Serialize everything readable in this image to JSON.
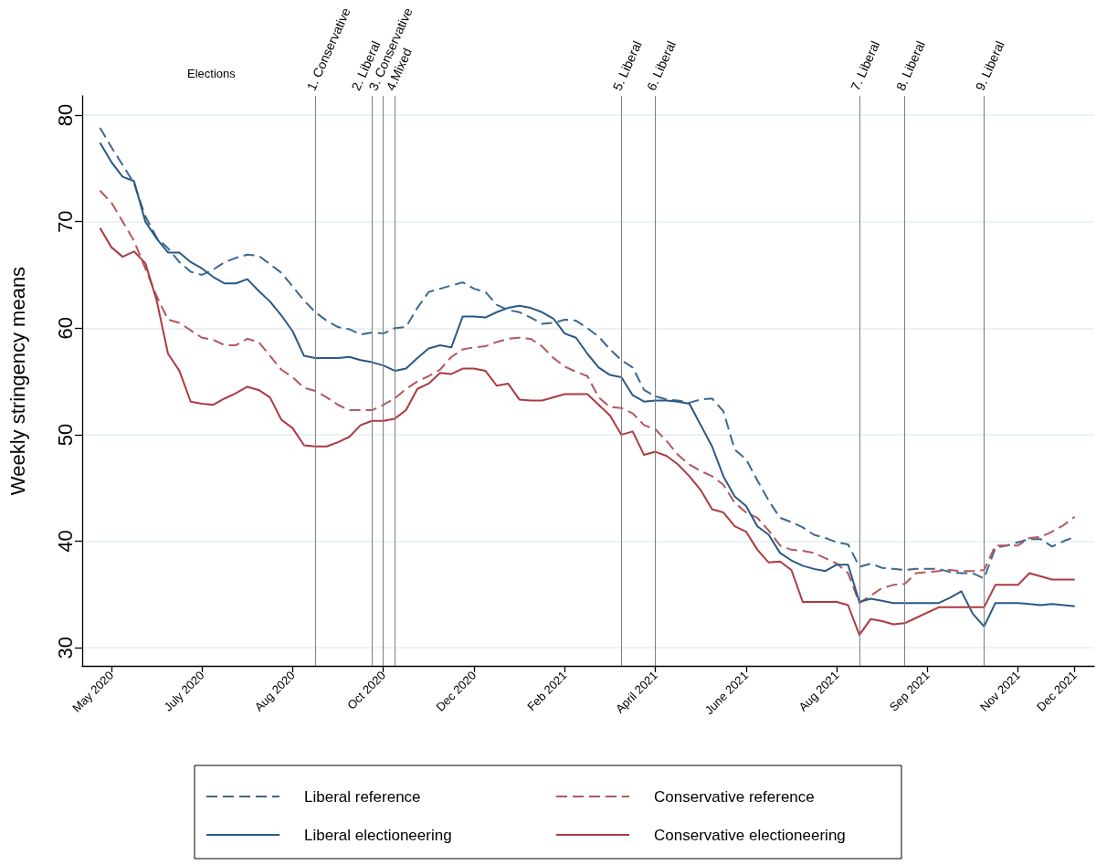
{
  "chart_data": {
    "type": "line",
    "ylabel": "Weekly stringency means",
    "annotations": [
      "Elections"
    ],
    "x": [
      "2020-05-03",
      "2020-05-10",
      "2020-05-17",
      "2020-05-24",
      "2020-05-31",
      "2020-06-07",
      "2020-06-14",
      "2020-06-21",
      "2020-06-28",
      "2020-07-05",
      "2020-07-12",
      "2020-07-19",
      "2020-07-26",
      "2020-08-02",
      "2020-08-09",
      "2020-08-16",
      "2020-08-23",
      "2020-08-30",
      "2020-09-06",
      "2020-09-13",
      "2020-09-20",
      "2020-09-27",
      "2020-10-04",
      "2020-10-11",
      "2020-10-18",
      "2020-10-25",
      "2020-11-01",
      "2020-11-08",
      "2020-11-15",
      "2020-11-22",
      "2020-11-29",
      "2020-12-06",
      "2020-12-13",
      "2020-12-20",
      "2020-12-27",
      "2021-01-03",
      "2021-01-10",
      "2021-01-17",
      "2021-01-24",
      "2021-01-31",
      "2021-02-07",
      "2021-02-14",
      "2021-02-21",
      "2021-02-28",
      "2021-03-07",
      "2021-03-14",
      "2021-03-21",
      "2021-03-28",
      "2021-04-04",
      "2021-04-11",
      "2021-04-18",
      "2021-04-25",
      "2021-05-02",
      "2021-05-09",
      "2021-05-16",
      "2021-05-23",
      "2021-05-30",
      "2021-06-06",
      "2021-06-13",
      "2021-06-20",
      "2021-06-27",
      "2021-07-04",
      "2021-07-11",
      "2021-07-18",
      "2021-07-25",
      "2021-08-01",
      "2021-08-08",
      "2021-08-15",
      "2021-08-22",
      "2021-08-29",
      "2021-09-05",
      "2021-09-12",
      "2021-09-19",
      "2021-09-26",
      "2021-10-03",
      "2021-10-10",
      "2021-10-17",
      "2021-10-24",
      "2021-10-31",
      "2021-11-07",
      "2021-11-14",
      "2021-11-21",
      "2021-11-28",
      "2021-12-05",
      "2021-12-12",
      "2021-12-19",
      "2021-12-26"
    ],
    "xlim": [
      "2020-04-22",
      "2022-01-07"
    ],
    "xticks": [
      {
        "value": "2020-05-10",
        "label": "May 2020"
      },
      {
        "value": "2020-07-05",
        "label": "July 2020"
      },
      {
        "value": "2020-08-30",
        "label": "Aug 2020"
      },
      {
        "value": "2020-10-25",
        "label": "Oct 2020"
      },
      {
        "value": "2020-12-20",
        "label": "Dec 2020"
      },
      {
        "value": "2021-02-14",
        "label": "Feb 2021"
      },
      {
        "value": "2021-04-11",
        "label": "April 2021"
      },
      {
        "value": "2021-06-06",
        "label": "June 2021"
      },
      {
        "value": "2021-08-01",
        "label": "Aug 2021"
      },
      {
        "value": "2021-09-26",
        "label": "Sep 2021"
      },
      {
        "value": "2021-11-21",
        "label": "Nov 2021"
      },
      {
        "value": "2021-12-26",
        "label": "Dec 2021"
      }
    ],
    "ylim": [
      28.3,
      81.8
    ],
    "yticks": [
      30,
      40,
      50,
      60,
      70,
      80
    ],
    "series": [
      {
        "name": "Liberal reference",
        "color": "#3a6891",
        "line_style": "dashed",
        "values": [
          78.8,
          77.0,
          75.3,
          73.6,
          70.5,
          68.5,
          67.5,
          66.2,
          65.3,
          65.0,
          65.5,
          66.2,
          66.6,
          66.9,
          66.8,
          66.0,
          65.2,
          63.9,
          62.6,
          61.5,
          60.7,
          60.1,
          59.9,
          59.4,
          59.6,
          59.5,
          60.0,
          60.1,
          61.9,
          63.4,
          63.7,
          64.0,
          64.3,
          63.7,
          63.4,
          62.2,
          61.7,
          61.5,
          61.0,
          60.4,
          60.5,
          60.8,
          60.7,
          60.0,
          59.2,
          58.0,
          57.0,
          56.3,
          54.2,
          53.6,
          53.3,
          53.2,
          53.0,
          53.3,
          53.4,
          52.2,
          48.6,
          47.7,
          45.7,
          43.8,
          42.2,
          41.8,
          41.3,
          40.6,
          40.3,
          39.9,
          39.7,
          37.6,
          37.9,
          37.5,
          37.4,
          37.3,
          37.4,
          37.4,
          37.4,
          37.1,
          37.0,
          37.0,
          36.5,
          39.4,
          39.6,
          39.9,
          40.2,
          40.2,
          39.5,
          40.0,
          40.4
        ]
      },
      {
        "name": "Conservative reference",
        "color": "#b4585d",
        "line_style": "dashed",
        "values": [
          72.9,
          71.8,
          70.0,
          68.2,
          65.6,
          63.0,
          60.8,
          60.5,
          59.8,
          59.1,
          58.9,
          58.4,
          58.4,
          59.0,
          58.7,
          57.4,
          56.1,
          55.4,
          54.4,
          54.1,
          53.5,
          52.8,
          52.3,
          52.3,
          52.3,
          52.8,
          53.4,
          54.3,
          55.0,
          55.5,
          56.1,
          57.3,
          58.0,
          58.2,
          58.3,
          58.7,
          59.0,
          59.1,
          59.0,
          58.3,
          57.2,
          56.4,
          55.9,
          55.5,
          53.5,
          52.6,
          52.5,
          52.0,
          50.9,
          50.5,
          49.4,
          48.1,
          47.2,
          46.6,
          46.1,
          45.3,
          43.6,
          42.7,
          42.2,
          41.0,
          39.6,
          39.2,
          39.1,
          38.9,
          38.4,
          37.9,
          37.0,
          34.2,
          34.9,
          35.6,
          35.9,
          36.0,
          37.0,
          37.1,
          37.2,
          37.3,
          37.2,
          37.2,
          37.3,
          39.6,
          39.6,
          39.6,
          40.3,
          40.4,
          40.9,
          41.5,
          42.3
        ]
      },
      {
        "name": "Liberal electioneering",
        "color": "#2a5886",
        "line_style": "solid",
        "values": [
          77.4,
          75.6,
          74.2,
          73.8,
          70.0,
          68.4,
          67.1,
          67.1,
          66.2,
          65.6,
          64.8,
          64.2,
          64.2,
          64.6,
          63.5,
          62.5,
          61.2,
          59.7,
          57.4,
          57.2,
          57.2,
          57.2,
          57.3,
          57.0,
          56.8,
          56.5,
          56.0,
          56.2,
          57.2,
          58.1,
          58.4,
          58.2,
          61.1,
          61.1,
          61.0,
          61.5,
          61.9,
          62.1,
          61.9,
          61.5,
          60.9,
          59.5,
          59.1,
          57.6,
          56.3,
          55.6,
          55.4,
          53.7,
          53.1,
          53.2,
          53.2,
          53.1,
          52.9,
          50.9,
          48.9,
          46.1,
          44.2,
          43.3,
          41.4,
          40.6,
          38.9,
          38.2,
          37.7,
          37.4,
          37.2,
          37.8,
          37.8,
          34.3,
          34.6,
          34.4,
          34.2,
          34.2,
          34.2,
          34.2,
          34.2,
          34.7,
          35.3,
          33.2,
          32.0,
          34.2,
          34.2,
          34.2,
          34.1,
          34.0,
          34.1,
          34.0,
          33.9
        ]
      },
      {
        "name": "Conservative electioneering",
        "color": "#ad3a40",
        "line_style": "solid",
        "values": [
          69.4,
          67.6,
          66.7,
          67.2,
          66.1,
          62.6,
          57.6,
          56.0,
          53.1,
          52.9,
          52.8,
          53.4,
          53.9,
          54.5,
          54.2,
          53.5,
          51.4,
          50.6,
          49.0,
          48.9,
          48.9,
          49.3,
          49.8,
          50.9,
          51.3,
          51.3,
          51.5,
          52.3,
          54.3,
          54.8,
          55.8,
          55.7,
          56.2,
          56.2,
          56.0,
          54.6,
          54.8,
          53.3,
          53.2,
          53.2,
          53.5,
          53.8,
          53.8,
          53.8,
          52.8,
          51.8,
          50.0,
          50.3,
          48.1,
          48.4,
          48.0,
          47.2,
          46.1,
          44.8,
          43.0,
          42.7,
          41.4,
          40.9,
          39.2,
          38.0,
          38.1,
          37.3,
          34.3,
          34.3,
          34.3,
          34.3,
          34.0,
          31.2,
          32.7,
          32.5,
          32.2,
          32.3,
          32.8,
          33.3,
          33.8,
          33.8,
          33.8,
          33.8,
          33.8,
          35.9,
          35.9,
          35.9,
          37.0,
          36.7,
          36.4,
          36.4,
          36.4
        ]
      }
    ],
    "ref_lines": [
      {
        "axis": "x",
        "value": "2020-09-13",
        "label": "1. Conservative",
        "color": "#808080"
      },
      {
        "axis": "x",
        "value": "2020-10-18",
        "label": "2. Liberal",
        "color": "#808080"
      },
      {
        "axis": "x",
        "value": "2020-10-25",
        "label": "3. Conservative",
        "color": "#808080"
      },
      {
        "axis": "x",
        "value": "2020-11-01",
        "label": "4.Mixed",
        "color": "#808080"
      },
      {
        "axis": "x",
        "value": "2021-03-21",
        "label": "5. Liberal",
        "color": "#808080"
      },
      {
        "axis": "x",
        "value": "2021-04-11",
        "label": "6. Liberal",
        "color": "#808080"
      },
      {
        "axis": "x",
        "value": "2021-08-15",
        "label": "7. Liberal",
        "color": "#808080"
      },
      {
        "axis": "x",
        "value": "2021-09-12",
        "label": "8. Liberal",
        "color": "#808080"
      },
      {
        "axis": "x",
        "value": "2021-10-31",
        "label": "9. Liberal",
        "color": "#808080"
      }
    ],
    "grid": "y",
    "legend": "bottom",
    "marker": "none"
  }
}
